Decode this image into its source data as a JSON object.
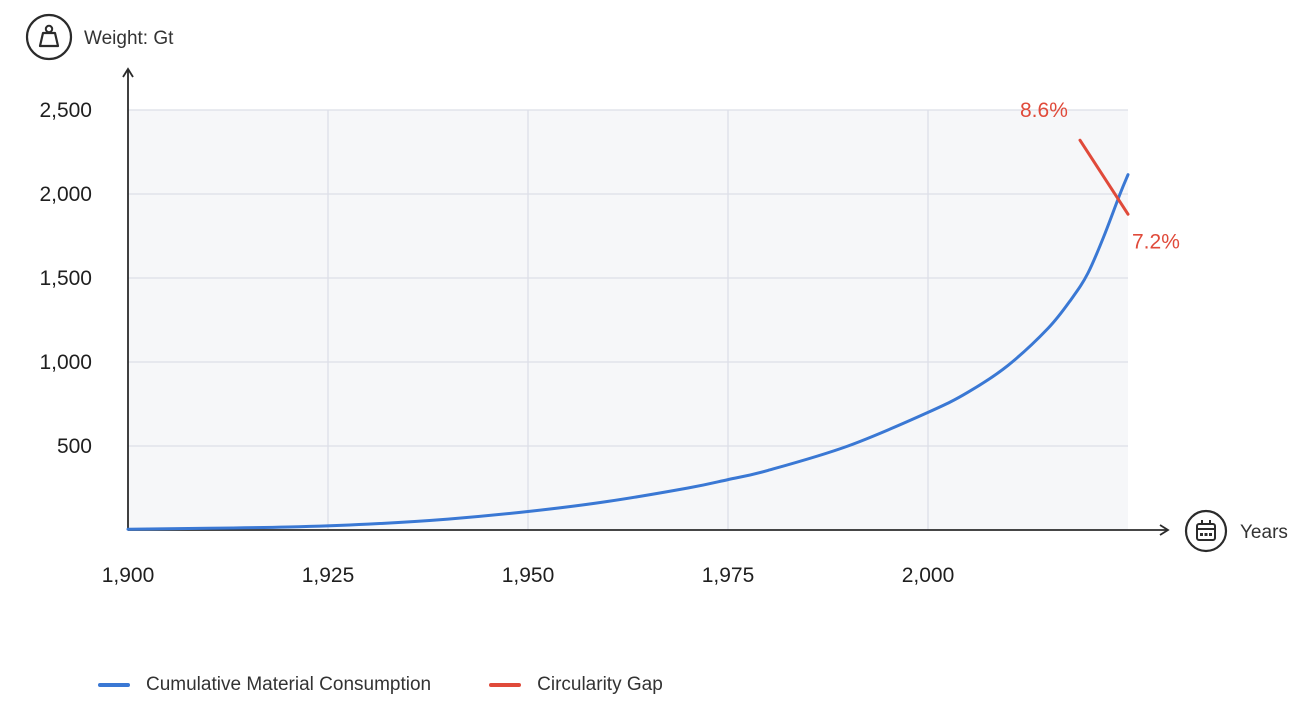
{
  "chart_data": {
    "type": "line",
    "ylabel": "Weight: Gt",
    "xlabel": "Years",
    "xlim": [
      1900,
      2025
    ],
    "ylim": [
      0,
      2500
    ],
    "x_ticks": [
      1900,
      1925,
      1950,
      1975,
      2000
    ],
    "x_tick_labels": [
      "1,900",
      "1,925",
      "1,950",
      "1,975",
      "2,000"
    ],
    "y_ticks": [
      500,
      1000,
      1500,
      2000,
      2500
    ],
    "y_tick_labels": [
      "500",
      "1,000",
      "1,500",
      "2,000",
      "2,500"
    ],
    "grid": true,
    "legend_placement": "bottom-left",
    "series": [
      {
        "name": "Cumulative Material Consumption",
        "color": "#3a78d4",
        "x": [
          1900,
          1910,
          1920,
          1930,
          1940,
          1950,
          1960,
          1970,
          1975,
          1980,
          1990,
          2000,
          2005,
          2010,
          2015,
          2018,
          2020,
          2022,
          2024,
          2025
        ],
        "y": [
          5,
          10,
          18,
          35,
          65,
          110,
          170,
          250,
          300,
          355,
          500,
          700,
          820,
          980,
          1200,
          1380,
          1530,
          1750,
          2000,
          2115
        ]
      },
      {
        "name": "Circularity Gap",
        "color": "#e04a3a",
        "x": [
          2019,
          2025
        ],
        "y": [
          2320,
          1880
        ]
      }
    ],
    "annotations": [
      {
        "text": "8.6%",
        "x": 2018,
        "y": 2320,
        "color": "#e04a3a"
      },
      {
        "text": "7.2%",
        "x": 2025,
        "y": 1790,
        "color": "#e04a3a"
      }
    ]
  },
  "icons": {
    "weight": "weight-icon",
    "calendar": "calendar-icon"
  }
}
